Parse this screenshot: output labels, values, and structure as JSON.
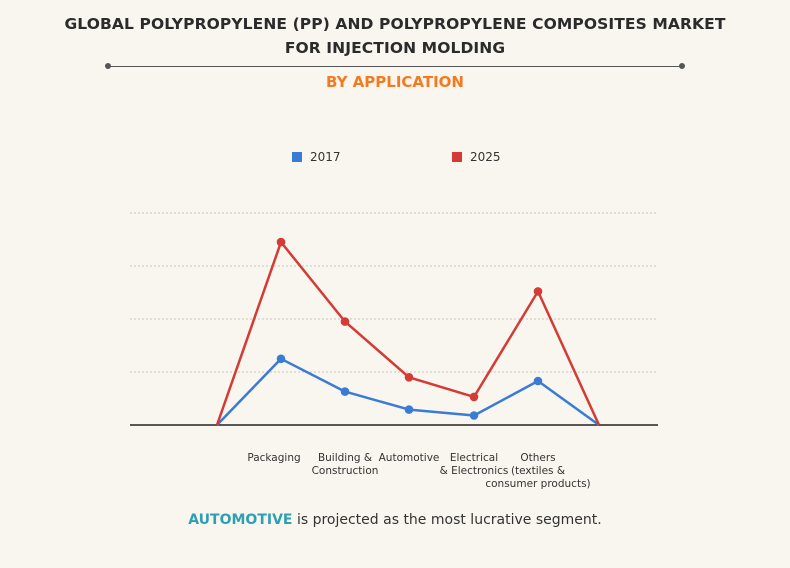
{
  "header": {
    "title_line1": "GLOBAL POLYPROPYLENE (PP) AND POLYPROPYLENE COMPOSITES MARKET",
    "title_line2": "FOR INJECTION MOLDING",
    "subtitle": "BY APPLICATION"
  },
  "legend": [
    {
      "label": "2017",
      "color": "#3a7bd5"
    },
    {
      "label": "2025",
      "color": "#d33b34"
    }
  ],
  "chart_data": {
    "type": "line",
    "categories": [
      "",
      "Packaging",
      "Building & Construction",
      "Automotive",
      "Electrical & Electronics",
      "Others (textiles & consumer products)",
      ""
    ],
    "category_label_lines": [
      [],
      [
        "Packaging"
      ],
      [
        "Building &",
        "Construction"
      ],
      [
        "Automotive"
      ],
      [
        "Electrical",
        "& Electronics"
      ],
      [
        "Others",
        "(textiles &",
        "consumer products)"
      ],
      []
    ],
    "series": [
      {
        "name": "2017",
        "color": "#3a7bd5",
        "values": [
          0,
          1.25,
          0.63,
          0.29,
          0.18,
          0.83,
          0
        ]
      },
      {
        "name": "2025",
        "color": "#d33b34",
        "values": [
          0,
          3.45,
          1.95,
          0.9,
          0.53,
          2.52,
          0
        ]
      }
    ],
    "ylim": [
      0,
      4
    ],
    "grid": true,
    "legend_position": "top"
  },
  "footer": {
    "highlight": "AUTOMOTIVE",
    "text": " is projected as the most lucrative segment."
  }
}
